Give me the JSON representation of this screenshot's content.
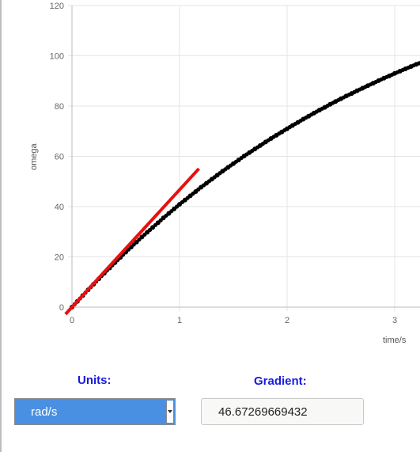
{
  "chart_data": {
    "type": "scatter",
    "xlabel": "time/s",
    "ylabel": "omega",
    "xlim": [
      0,
      3.25
    ],
    "ylim": [
      0,
      120
    ],
    "x_ticks": [
      0,
      1,
      2,
      3
    ],
    "y_ticks": [
      0,
      20,
      40,
      60,
      80,
      100,
      120
    ],
    "grid": true,
    "series": [
      {
        "x": [
          0.0,
          0.05,
          0.1,
          0.15,
          0.2,
          0.25,
          0.3,
          0.35,
          0.4,
          0.45,
          0.5,
          0.55,
          0.6,
          0.65,
          0.7,
          0.75,
          0.8,
          0.85,
          0.9,
          0.95,
          1.0,
          1.05,
          1.1,
          1.15,
          1.2,
          1.25,
          1.3,
          1.35,
          1.4,
          1.45,
          1.5,
          1.55,
          1.6,
          1.65,
          1.7,
          1.75,
          1.8,
          1.85,
          1.9,
          1.95,
          2.0,
          2.05,
          2.1,
          2.15,
          2.2,
          2.25,
          2.3,
          2.35,
          2.4,
          2.45,
          2.5,
          2.55,
          2.6,
          2.65,
          2.7,
          2.75,
          2.8,
          2.85,
          2.9,
          2.95,
          3.0,
          3.05,
          3.1,
          3.15,
          3.2,
          3.25
        ],
        "y": [
          0.0,
          2.3,
          4.6,
          6.9,
          9.1,
          11.3,
          13.5,
          15.6,
          17.7,
          19.8,
          21.9,
          23.9,
          25.9,
          27.9,
          29.8,
          31.7,
          33.6,
          35.5,
          37.3,
          39.1,
          40.9,
          42.6,
          44.3,
          46.0,
          47.7,
          49.3,
          50.9,
          52.5,
          54.1,
          55.6,
          57.1,
          58.6,
          60.1,
          61.5,
          62.9,
          64.3,
          65.7,
          67.1,
          68.4,
          69.7,
          71.0,
          72.3,
          73.5,
          74.8,
          76.0,
          77.2,
          78.4,
          79.5,
          80.7,
          81.8,
          82.9,
          84.0,
          85.0,
          86.1,
          87.1,
          88.1,
          89.1,
          90.1,
          91.1,
          92.0,
          93.0,
          93.9,
          94.8,
          95.7,
          96.6,
          97.4
        ]
      }
    ],
    "tangent": {
      "x": [
        -0.06,
        1.18
      ],
      "y": [
        -2.8,
        55.1
      ],
      "color": "#e81010"
    },
    "point_color": "#000000"
  },
  "controls": {
    "units_label": "Units:",
    "units_value": "rad/s",
    "gradient_label": "Gradient:",
    "gradient_value": "46.67269669432"
  },
  "colors": {
    "label_blue": "#1a1adb",
    "select_bg": "#4a90e2"
  }
}
